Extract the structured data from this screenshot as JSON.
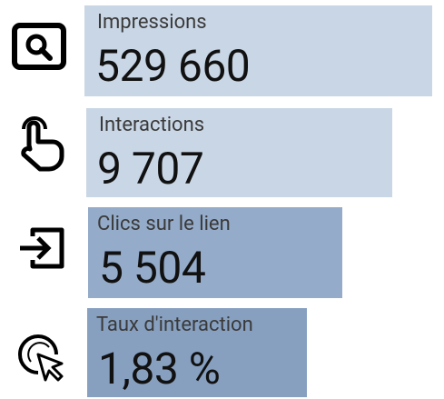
{
  "items": [
    {
      "label": "Impressions",
      "value": "529 660"
    },
    {
      "label": "Interactions",
      "value": "9 707"
    },
    {
      "label": "Clics sur le lien",
      "value": "5 504"
    },
    {
      "label": "Taux d'interaction",
      "value": "1,83 %"
    }
  ]
}
